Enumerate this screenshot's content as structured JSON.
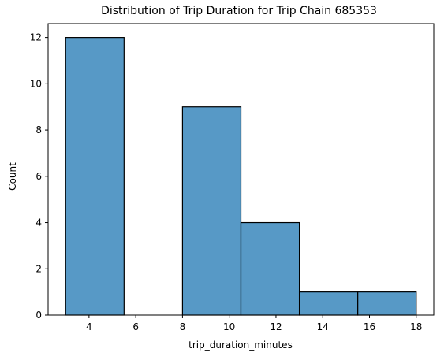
{
  "chart_data": {
    "type": "bar",
    "title": "Distribution of Trip Duration for Trip Chain 685353",
    "xlabel": "trip_duration_minutes",
    "ylabel": "Count",
    "bins": [
      {
        "start": 3.0,
        "end": 5.5,
        "count": 12
      },
      {
        "start": 5.5,
        "end": 8.0,
        "count": 0
      },
      {
        "start": 8.0,
        "end": 10.5,
        "count": 9
      },
      {
        "start": 10.5,
        "end": 13.0,
        "count": 4
      },
      {
        "start": 13.0,
        "end": 15.5,
        "count": 1
      },
      {
        "start": 15.5,
        "end": 18.0,
        "count": 1
      }
    ],
    "xlim": [
      2.25,
      18.75
    ],
    "ylim": [
      0,
      12.6
    ],
    "xticks": [
      4,
      6,
      8,
      10,
      12,
      14,
      16,
      18
    ],
    "yticks": [
      0,
      2,
      4,
      6,
      8,
      10,
      12
    ],
    "grid": false,
    "bar_color": "#5799c6",
    "edge_color": "#000000"
  }
}
